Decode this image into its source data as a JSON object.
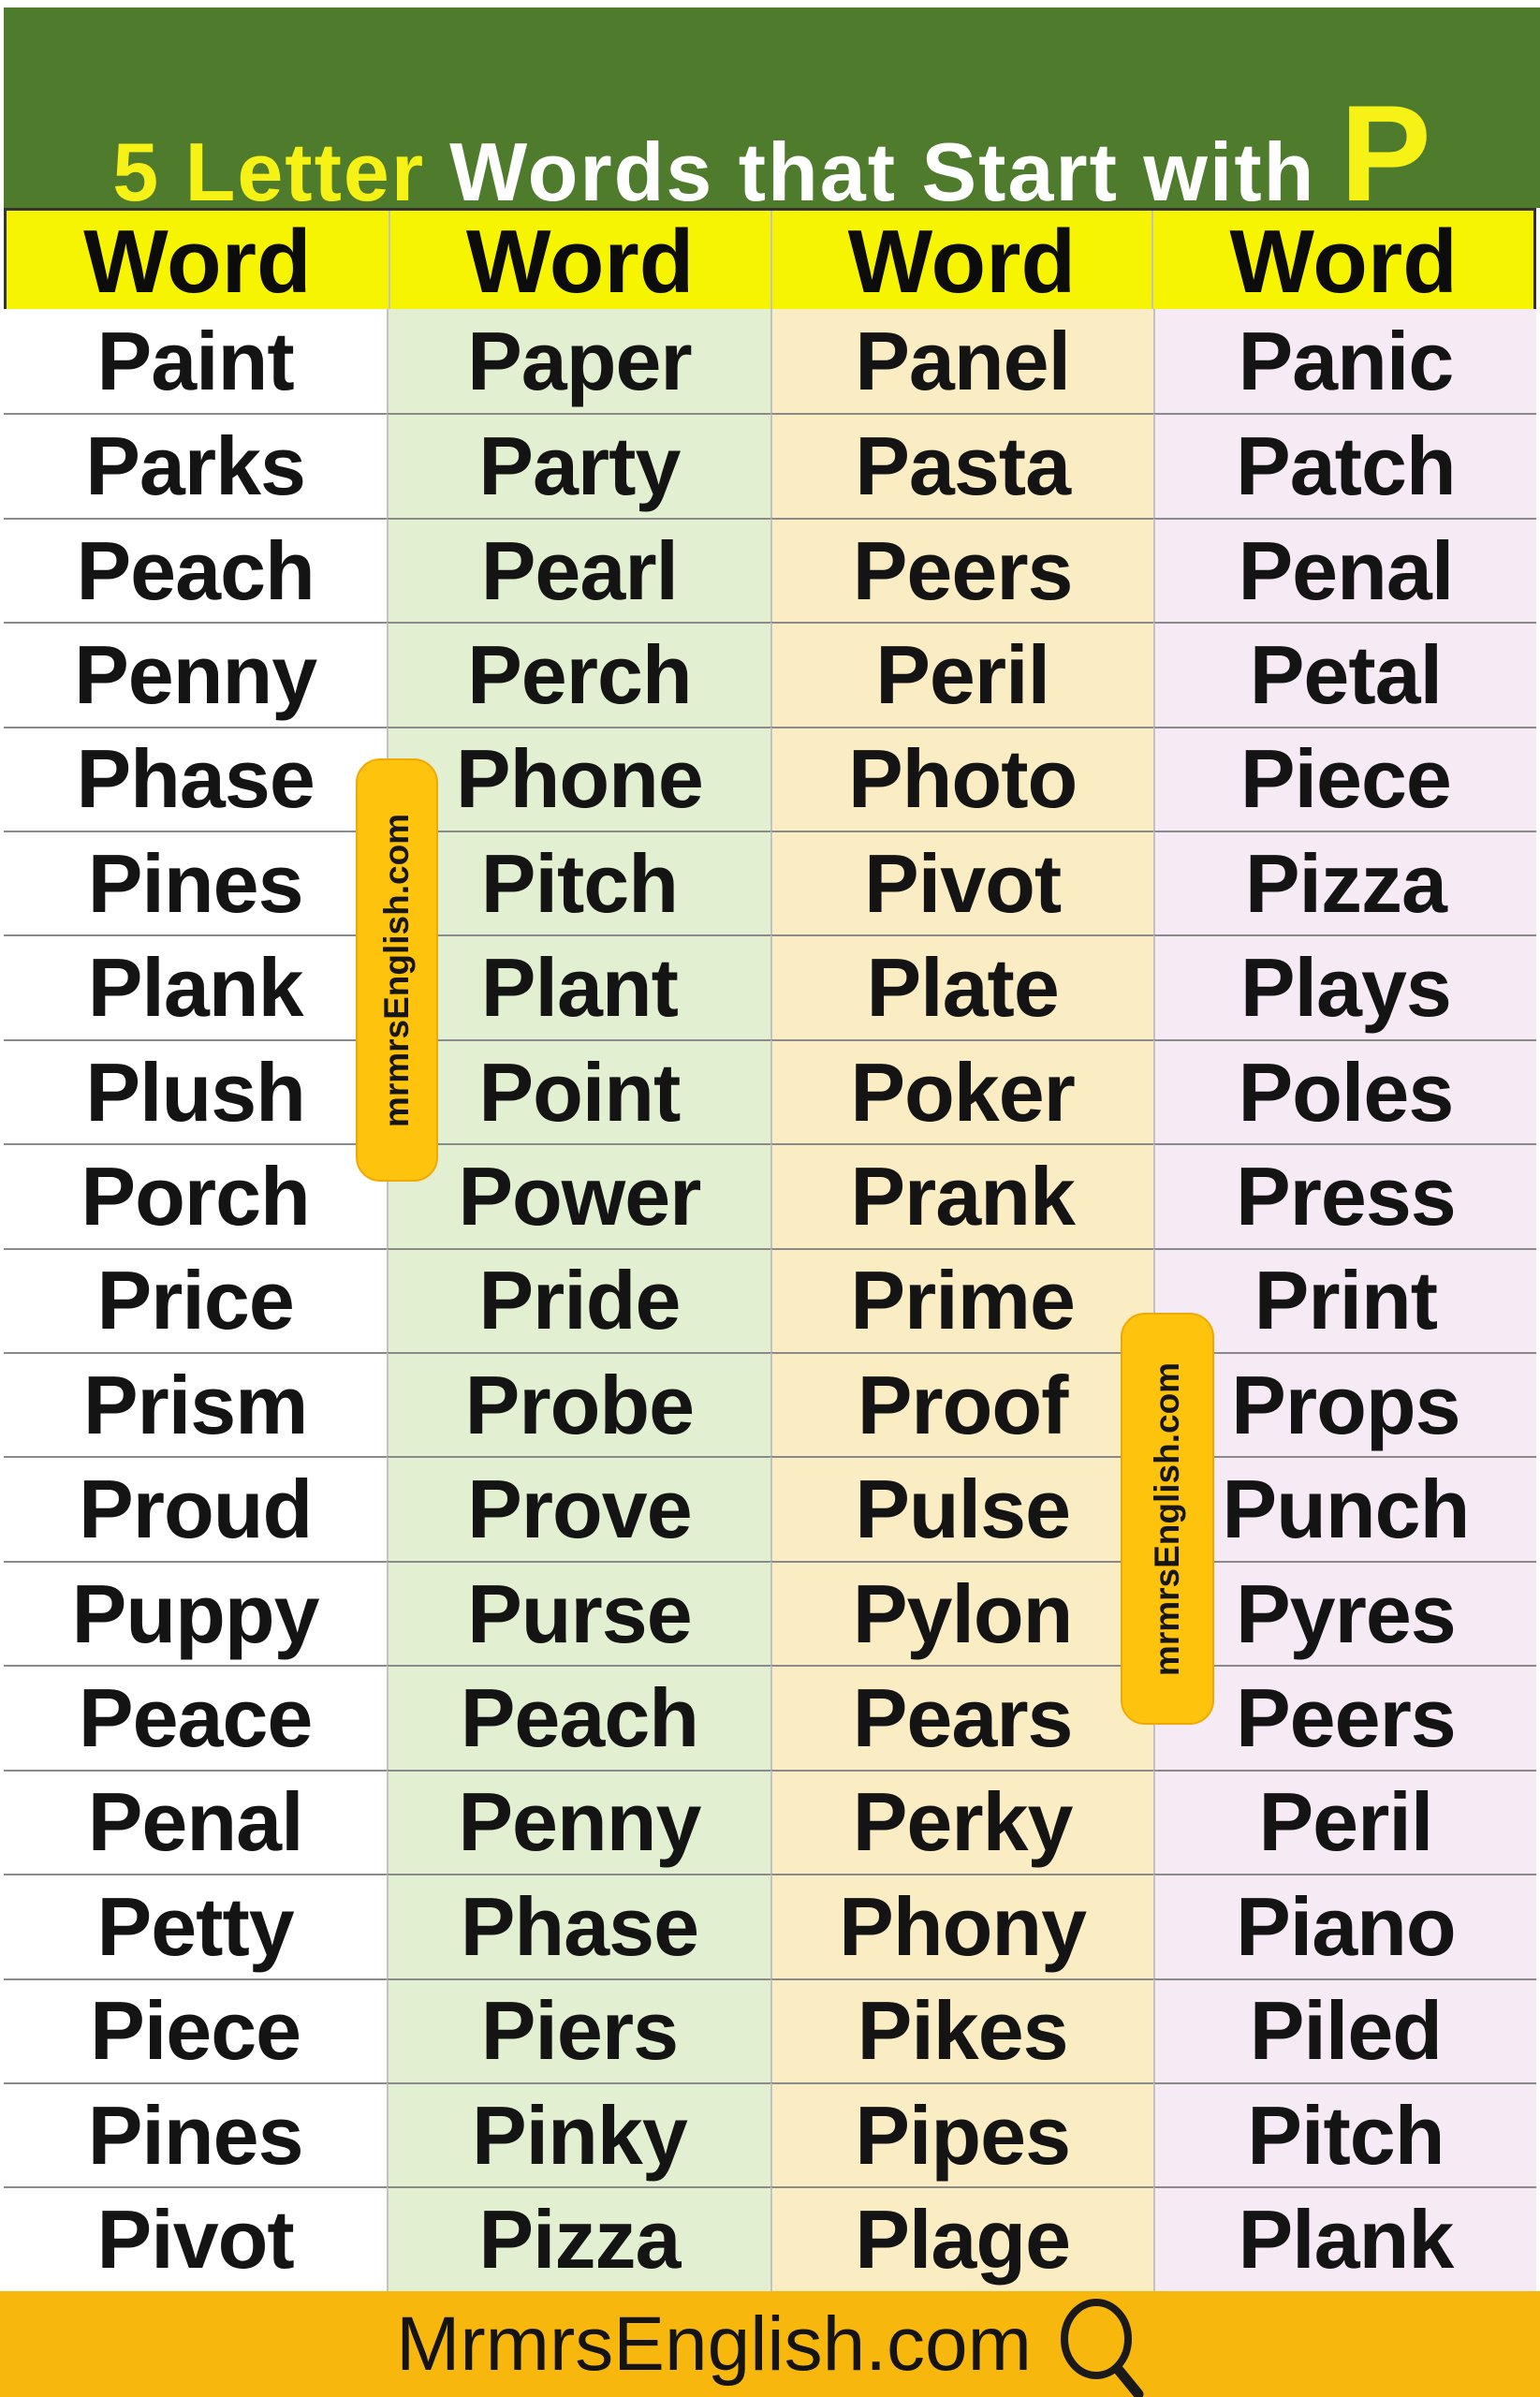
{
  "title": {
    "part1": "5 Letter",
    "part2": "Words that Start with",
    "part3": "P"
  },
  "table": {
    "headers": [
      "Word",
      "Word",
      "Word",
      "Word"
    ],
    "rows": [
      [
        "Paint",
        "Paper",
        "Panel",
        "Panic"
      ],
      [
        "Parks",
        "Party",
        "Pasta",
        "Patch"
      ],
      [
        "Peach",
        "Pearl",
        "Peers",
        "Penal"
      ],
      [
        "Penny",
        "Perch",
        "Peril",
        "Petal"
      ],
      [
        "Phase",
        "Phone",
        "Photo",
        "Piece"
      ],
      [
        "Pines",
        "Pitch",
        "Pivot",
        "Pizza"
      ],
      [
        "Plank",
        "Plant",
        "Plate",
        "Plays"
      ],
      [
        "Plush",
        "Point",
        "Poker",
        "Poles"
      ],
      [
        "Porch",
        "Power",
        "Prank",
        "Press"
      ],
      [
        "Price",
        "Pride",
        "Prime",
        "Print"
      ],
      [
        "Prism",
        "Probe",
        "Proof",
        "Props"
      ],
      [
        "Proud",
        "Prove",
        "Pulse",
        "Punch"
      ],
      [
        "Puppy",
        "Purse",
        "Pylon",
        "Pyres"
      ],
      [
        "Peace",
        "Peach",
        "Pears",
        "Peers"
      ],
      [
        "Penal",
        "Penny",
        "Perky",
        "Peril"
      ],
      [
        "Petty",
        "Phase",
        "Phony",
        "Piano"
      ],
      [
        "Piece",
        "Piers",
        "Pikes",
        "Piled"
      ],
      [
        "Pines",
        "Pinky",
        "Pipes",
        "Pitch"
      ],
      [
        "Pivot",
        "Pizza",
        "Plage",
        "Plank"
      ]
    ]
  },
  "watermarks": {
    "badge1": "mrmrsEnglish.com",
    "badge2": "mrmrsEnglish.com"
  },
  "footer": {
    "site": "MrmrsEnglish.com",
    "icon": "magnifier-icon"
  },
  "colors": {
    "banner-green": "#4e7b2c",
    "title-yellow": "#f7f215",
    "header-yellow": "#f7f400",
    "col1-bg": "#ffffff",
    "col2-bg": "#e2efd0",
    "col3-bg": "#faedc3",
    "col4-bg": "#f6eaf5",
    "badge-amber": "#fec30d",
    "footer-amber": "#f8b70d",
    "row-line": "#8a8a8a",
    "col-line": "#c2c2c2"
  }
}
